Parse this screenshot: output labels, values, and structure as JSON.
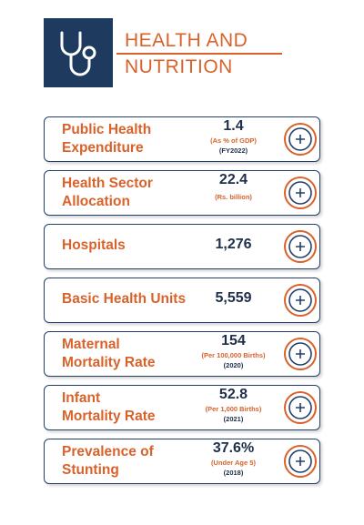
{
  "header": {
    "title_lines": [
      "HEALTH AND",
      "NUTRITION"
    ]
  },
  "cards": [
    {
      "label_lines": [
        "Public Health",
        "Expenditure"
      ],
      "value": "1.4",
      "unit": "(As % of GDP)",
      "year": "(FY2022)"
    },
    {
      "label_lines": [
        "Health Sector",
        "Allocation"
      ],
      "value": "22.4",
      "unit": "(Rs. billion)"
    },
    {
      "label_lines": [
        "Hospitals"
      ],
      "value": "1,276"
    },
    {
      "label_lines": [
        "Basic Health Units"
      ],
      "value": "5,559"
    },
    {
      "label_lines": [
        "Maternal",
        "Mortality Rate"
      ],
      "value": "154",
      "unit": "(Per 100,000 Births)",
      "year": "(2020)"
    },
    {
      "label_lines": [
        "Infant",
        "Mortality Rate"
      ],
      "value": "52.8",
      "unit": "(Per 1,000 Births)",
      "year": "(2021)"
    },
    {
      "label_lines": [
        "Prevalence of",
        "Stunting"
      ],
      "value": "37.6%",
      "unit": "(Under Age 5)",
      "year": "(2018)"
    }
  ]
}
